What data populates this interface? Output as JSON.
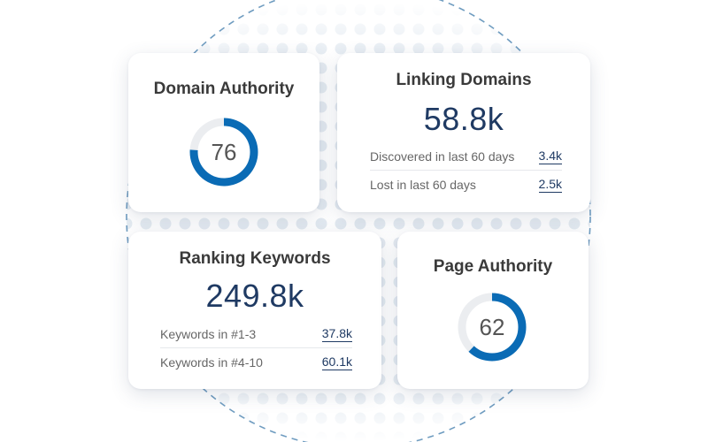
{
  "colors": {
    "accent": "#0a6bb5",
    "track": "#ebedf0",
    "number": "#1f3a63",
    "dashed_circle": "#6f9cc0"
  },
  "domain_authority": {
    "title": "Domain Authority",
    "value": "76",
    "fraction": 0.76
  },
  "linking_domains": {
    "title": "Linking Domains",
    "total": "58.8k",
    "rows": [
      {
        "label": "Discovered in last 60 days",
        "value": "3.4k"
      },
      {
        "label": "Lost in last 60 days",
        "value": "2.5k"
      }
    ]
  },
  "ranking_keywords": {
    "title": "Ranking Keywords",
    "total": "249.8k",
    "rows": [
      {
        "label": "Keywords in #1-3",
        "value": "37.8k"
      },
      {
        "label": "Keywords in #4-10",
        "value": "60.1k"
      }
    ]
  },
  "page_authority": {
    "title": "Page Authority",
    "value": "62",
    "fraction": 0.62
  }
}
